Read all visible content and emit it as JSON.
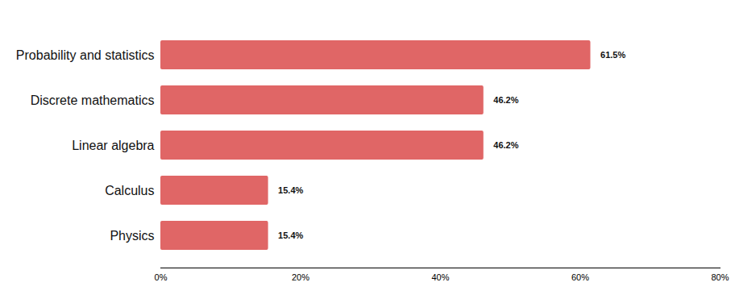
{
  "chart_data": {
    "type": "bar",
    "orientation": "horizontal",
    "categories": [
      "Probability and statistics",
      "Discrete mathematics",
      "Linear algebra",
      "Calculus",
      "Physics"
    ],
    "values": [
      61.5,
      46.2,
      46.2,
      15.4,
      15.4
    ],
    "value_labels": [
      "61.5%",
      "46.2%",
      "46.2%",
      "15.4%",
      "15.4%"
    ],
    "color": "#e06666",
    "xlim": [
      0,
      80
    ],
    "xticks": [
      {
        "value": 0,
        "label": "0%"
      },
      {
        "value": 20,
        "label": "20%"
      },
      {
        "value": 40,
        "label": "40%"
      },
      {
        "value": 60,
        "label": "60%"
      },
      {
        "value": 80,
        "label": "80%"
      }
    ],
    "grid": false,
    "data_labels": true
  }
}
